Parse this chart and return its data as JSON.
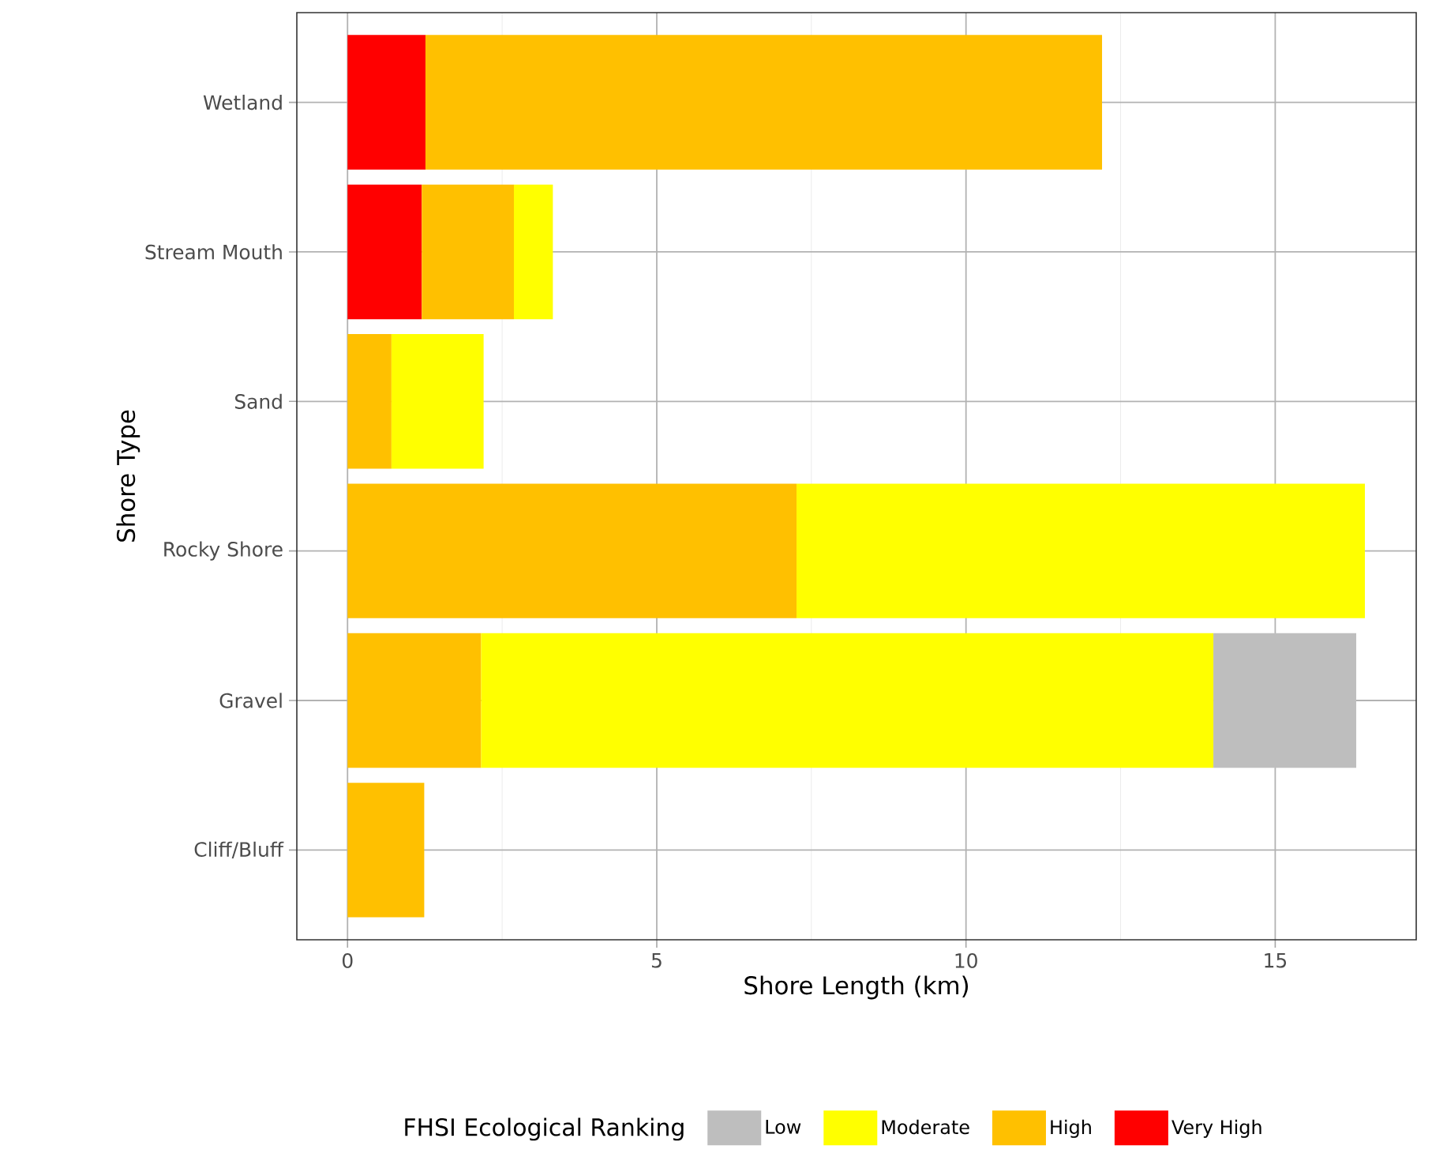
{
  "chart_data": {
    "type": "bar",
    "orientation": "horizontal",
    "stacked": true,
    "xlabel": "Shore Length (km)",
    "ylabel": "Shore Type",
    "legend_title": "FHSI Ecological Ranking",
    "legend": "bottom",
    "grid": true,
    "categories": [
      "Wetland",
      "Stream Mouth",
      "Sand",
      "Rocky Shore",
      "Gravel",
      "Cliff/Bluff"
    ],
    "xlim": [
      -0.82,
      17.28
    ],
    "xticks": [
      0,
      5,
      10,
      15
    ],
    "series": [
      {
        "name": "Very High",
        "color": "#ff0000",
        "values": [
          1.26,
          1.2,
          null,
          null,
          null,
          null
        ]
      },
      {
        "name": "High",
        "color": "#ffc000",
        "values": [
          10.94,
          1.49,
          0.71,
          7.26,
          2.16,
          1.24
        ]
      },
      {
        "name": "Moderate",
        "color": "#ffff00",
        "values": [
          null,
          0.63,
          1.49,
          9.19,
          11.84,
          null
        ]
      },
      {
        "name": "Low",
        "color": "#bebebe",
        "values": [
          null,
          null,
          null,
          null,
          2.31,
          null
        ]
      }
    ]
  }
}
